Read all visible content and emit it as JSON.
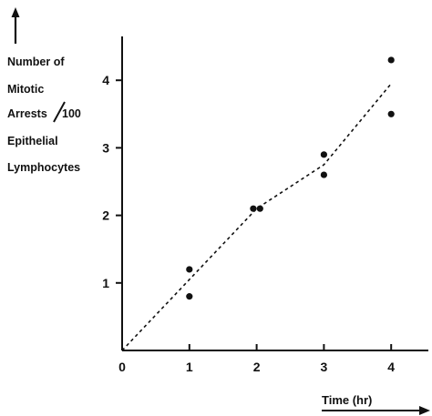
{
  "chart_data": {
    "type": "scatter",
    "title": "",
    "ylabel_lines": [
      "Number of",
      "Mitotic",
      "Arrests",
      "100",
      "Epithelial",
      "Lymphocytes"
    ],
    "xlabel": "Time (hr)",
    "xlim": [
      0,
      4.4
    ],
    "ylim": [
      0,
      4.6
    ],
    "x_ticks": [
      0,
      1,
      2,
      3,
      4
    ],
    "y_ticks": [
      1,
      2,
      3,
      4
    ],
    "x_tick_labels": [
      "0",
      "1",
      "2",
      "3",
      "4"
    ],
    "y_tick_labels": [
      "1",
      "2",
      "3",
      "4"
    ],
    "grid": false,
    "series": [
      {
        "marker": "filled-circle",
        "points": [
          {
            "x": 1,
            "y": 1.2
          },
          {
            "x": 1,
            "y": 0.8
          },
          {
            "x": 1.95,
            "y": 2.1
          },
          {
            "x": 2.05,
            "y": 2.1
          },
          {
            "x": 3,
            "y": 2.9
          },
          {
            "x": 3,
            "y": 2.6
          },
          {
            "x": 4,
            "y": 4.3
          },
          {
            "x": 4,
            "y": 3.5
          }
        ]
      }
    ],
    "fit_line": {
      "style": "dashed",
      "points": [
        {
          "x": 0,
          "y": 0
        },
        {
          "x": 2,
          "y": 2.1
        },
        {
          "x": 3,
          "y": 2.75
        },
        {
          "x": 4,
          "y": 3.95
        }
      ]
    },
    "colors": {
      "ink": "#111111",
      "background": "#ffffff"
    }
  }
}
